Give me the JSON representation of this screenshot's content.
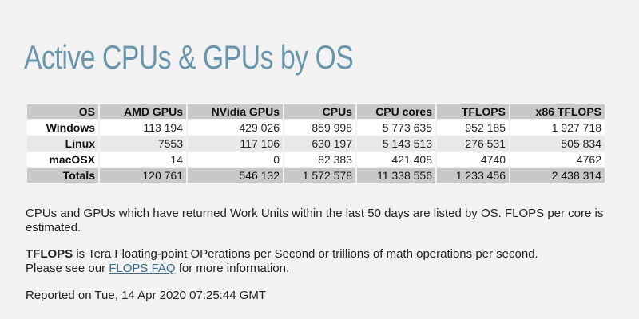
{
  "page": {
    "title": "Active CPUs & GPUs by OS"
  },
  "table": {
    "headers": [
      "OS",
      "AMD GPUs",
      "NVidia GPUs",
      "CPUs",
      "CPU cores",
      "TFLOPS",
      "x86 TFLOPS"
    ],
    "rows": [
      {
        "os": "Windows",
        "amd": "113 194",
        "nvidia": "429 026",
        "cpus": "859 998",
        "cores": "5 773 635",
        "tflops": "952 185",
        "x86": "1 927 718"
      },
      {
        "os": "Linux",
        "amd": "7553",
        "nvidia": "117 106",
        "cpus": "630 197",
        "cores": "5 143 513",
        "tflops": "276 531",
        "x86": "505 834"
      },
      {
        "os": "macOSX",
        "amd": "14",
        "nvidia": "0",
        "cpus": "82 383",
        "cores": "421 408",
        "tflops": "4740",
        "x86": "4762"
      }
    ],
    "totals": {
      "os": "Totals",
      "amd": "120 761",
      "nvidia": "546 132",
      "cpus": "1 572 578",
      "cores": "11 338 556",
      "tflops": "1 233 456",
      "x86": "2 438 314"
    }
  },
  "notes": {
    "description": "CPUs and GPUs which have returned Work Units within the last 50 days are listed by OS. FLOPS per core is estimated.",
    "tflops_term": "TFLOPS",
    "tflops_definition": " is Tera Floating-point OPerations per Second or trillions of math operations per second.",
    "see_prefix": "Please see our ",
    "faq_link": "FLOPS FAQ",
    "see_suffix": " for more information.",
    "reported": "Reported on Tue, 14 Apr 2020 07:25:44 GMT"
  },
  "colors": {
    "title": "#6a96ab",
    "header_bg": "#c8c8c8",
    "row_odd_bg": "#ffffff",
    "row_even_bg": "#e8e8e8",
    "page_bg": "#f2f2f2",
    "link": "#3a6f8f"
  }
}
